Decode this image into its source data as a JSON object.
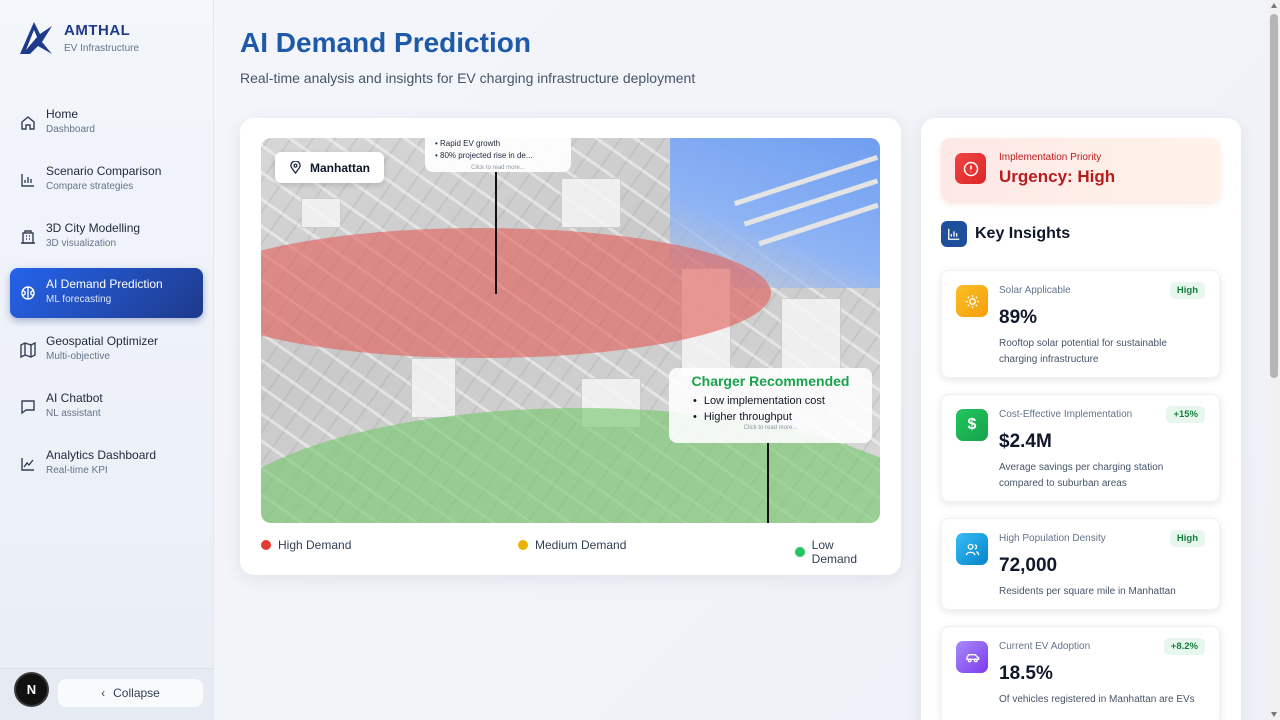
{
  "brand": {
    "name": "AMTHAL",
    "subtitle": "EV Infrastructure"
  },
  "nav": [
    {
      "title": "Home",
      "sub": "Dashboard",
      "icon": "home-icon"
    },
    {
      "title": "Scenario Comparison",
      "sub": "Compare strategies",
      "icon": "bar-chart-icon"
    },
    {
      "title": "3D City Modelling",
      "sub": "3D visualization",
      "icon": "building-icon"
    },
    {
      "title": "AI Demand Prediction",
      "sub": "ML forecasting",
      "icon": "brain-icon",
      "active": true
    },
    {
      "title": "Geospatial Optimizer",
      "sub": "Multi-objective",
      "icon": "map-icon"
    },
    {
      "title": "AI Chatbot",
      "sub": "NL assistant",
      "icon": "chat-icon"
    },
    {
      "title": "Analytics Dashboard",
      "sub": "Real-time KPI",
      "icon": "line-chart-icon"
    }
  ],
  "footer": {
    "collapse_label": "Collapse",
    "badge": "N"
  },
  "page": {
    "title": "AI Demand Prediction",
    "subtitle": "Real-time analysis and insights for EV charging infrastructure deployment"
  },
  "map": {
    "location": "Manhattan",
    "popup_top": {
      "lines": [
        "• Rapid EV growth",
        "• 80% projected rise in de..."
      ],
      "more": "Click to read more..."
    },
    "popup_reco": {
      "title": "Charger Recommended",
      "items": [
        "Low implementation cost",
        "Higher throughput"
      ],
      "more": "Click to read more..."
    },
    "legend": [
      {
        "label": "High Demand",
        "color": "#e53935"
      },
      {
        "label": "Medium Demand",
        "color": "#eab308"
      },
      {
        "label": "Low Demand",
        "color": "#22c55e"
      }
    ]
  },
  "urgency": {
    "label": "Implementation Priority",
    "value": "Urgency: High"
  },
  "insights": {
    "title": "Key Insights",
    "cards": [
      {
        "label": "Solar Applicable",
        "badge": "High",
        "value": "89%",
        "desc": "Rooftop solar potential for sustainable charging infrastructure",
        "icon": "sun-icon",
        "color": "#f59e0b"
      },
      {
        "label": "Cost-Effective Implementation",
        "badge": "+15%",
        "value": "$2.4M",
        "desc": "Average savings per charging station compared to suburban areas",
        "icon": "dollar-icon",
        "color": "#16a34a"
      },
      {
        "label": "High Population Density",
        "badge": "High",
        "value": "72,000",
        "desc": "Residents per square mile in Manhattan",
        "icon": "users-icon",
        "color": "#0ea5e9"
      },
      {
        "label": "Current EV Adoption",
        "badge": "+8.2%",
        "value": "18.5%",
        "desc": "Of vehicles registered in Manhattan are EVs",
        "icon": "car-icon",
        "color": "#8b5cf6"
      }
    ]
  }
}
